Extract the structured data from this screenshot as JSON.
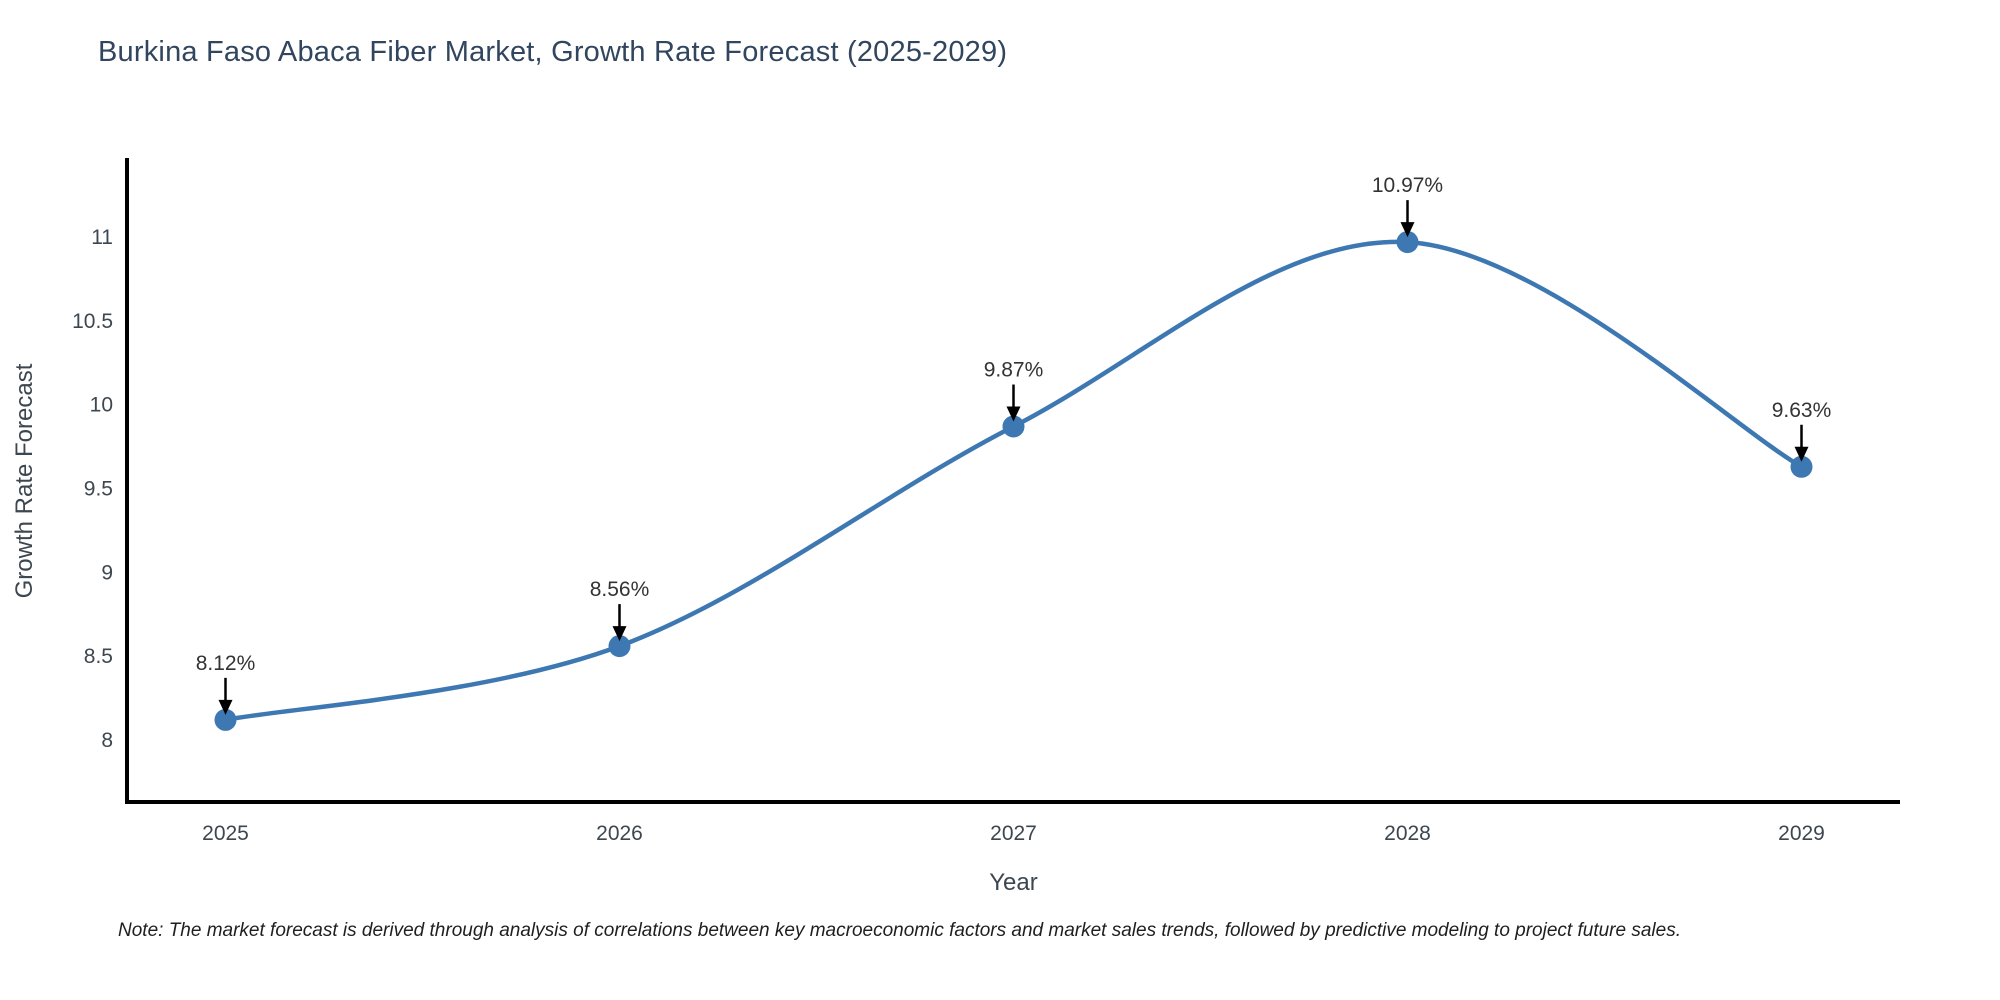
{
  "title": "Burkina Faso Abaca Fiber Market, Growth Rate Forecast (2025-2029)",
  "note": "Note: The market forecast is derived through analysis of correlations between key macroeconomic factors and market sales trends, followed by predictive modeling to project future sales.",
  "chart_data": {
    "type": "line",
    "title": "Burkina Faso Abaca Fiber Market, Growth Rate Forecast (2025-2029)",
    "x": [
      2025,
      2026,
      2027,
      2028,
      2029
    ],
    "values": [
      8.12,
      8.56,
      9.87,
      10.97,
      9.63
    ],
    "point_labels": [
      "8.12%",
      "8.56%",
      "9.87%",
      "10.97%",
      "9.63%"
    ],
    "xlabel": "Year",
    "ylabel": "Growth Rate Forecast",
    "yticks": [
      8,
      8.5,
      9,
      9.5,
      10,
      10.5,
      11
    ],
    "xticks": [
      2025,
      2026,
      2027,
      2028,
      2029
    ],
    "ylim": [
      7.63,
      11.46
    ],
    "xlim": [
      2024.75,
      2029.25
    ],
    "grid": false,
    "legend": "none",
    "smooth": true,
    "line_color": "#3d78b2",
    "marker_color": "#3d78b2",
    "annotation_color": "#333333",
    "arrow_color": "#000000",
    "axis_color": "#000000",
    "tick_color": "#3d474f",
    "axis_label_color": "#3d474f"
  }
}
